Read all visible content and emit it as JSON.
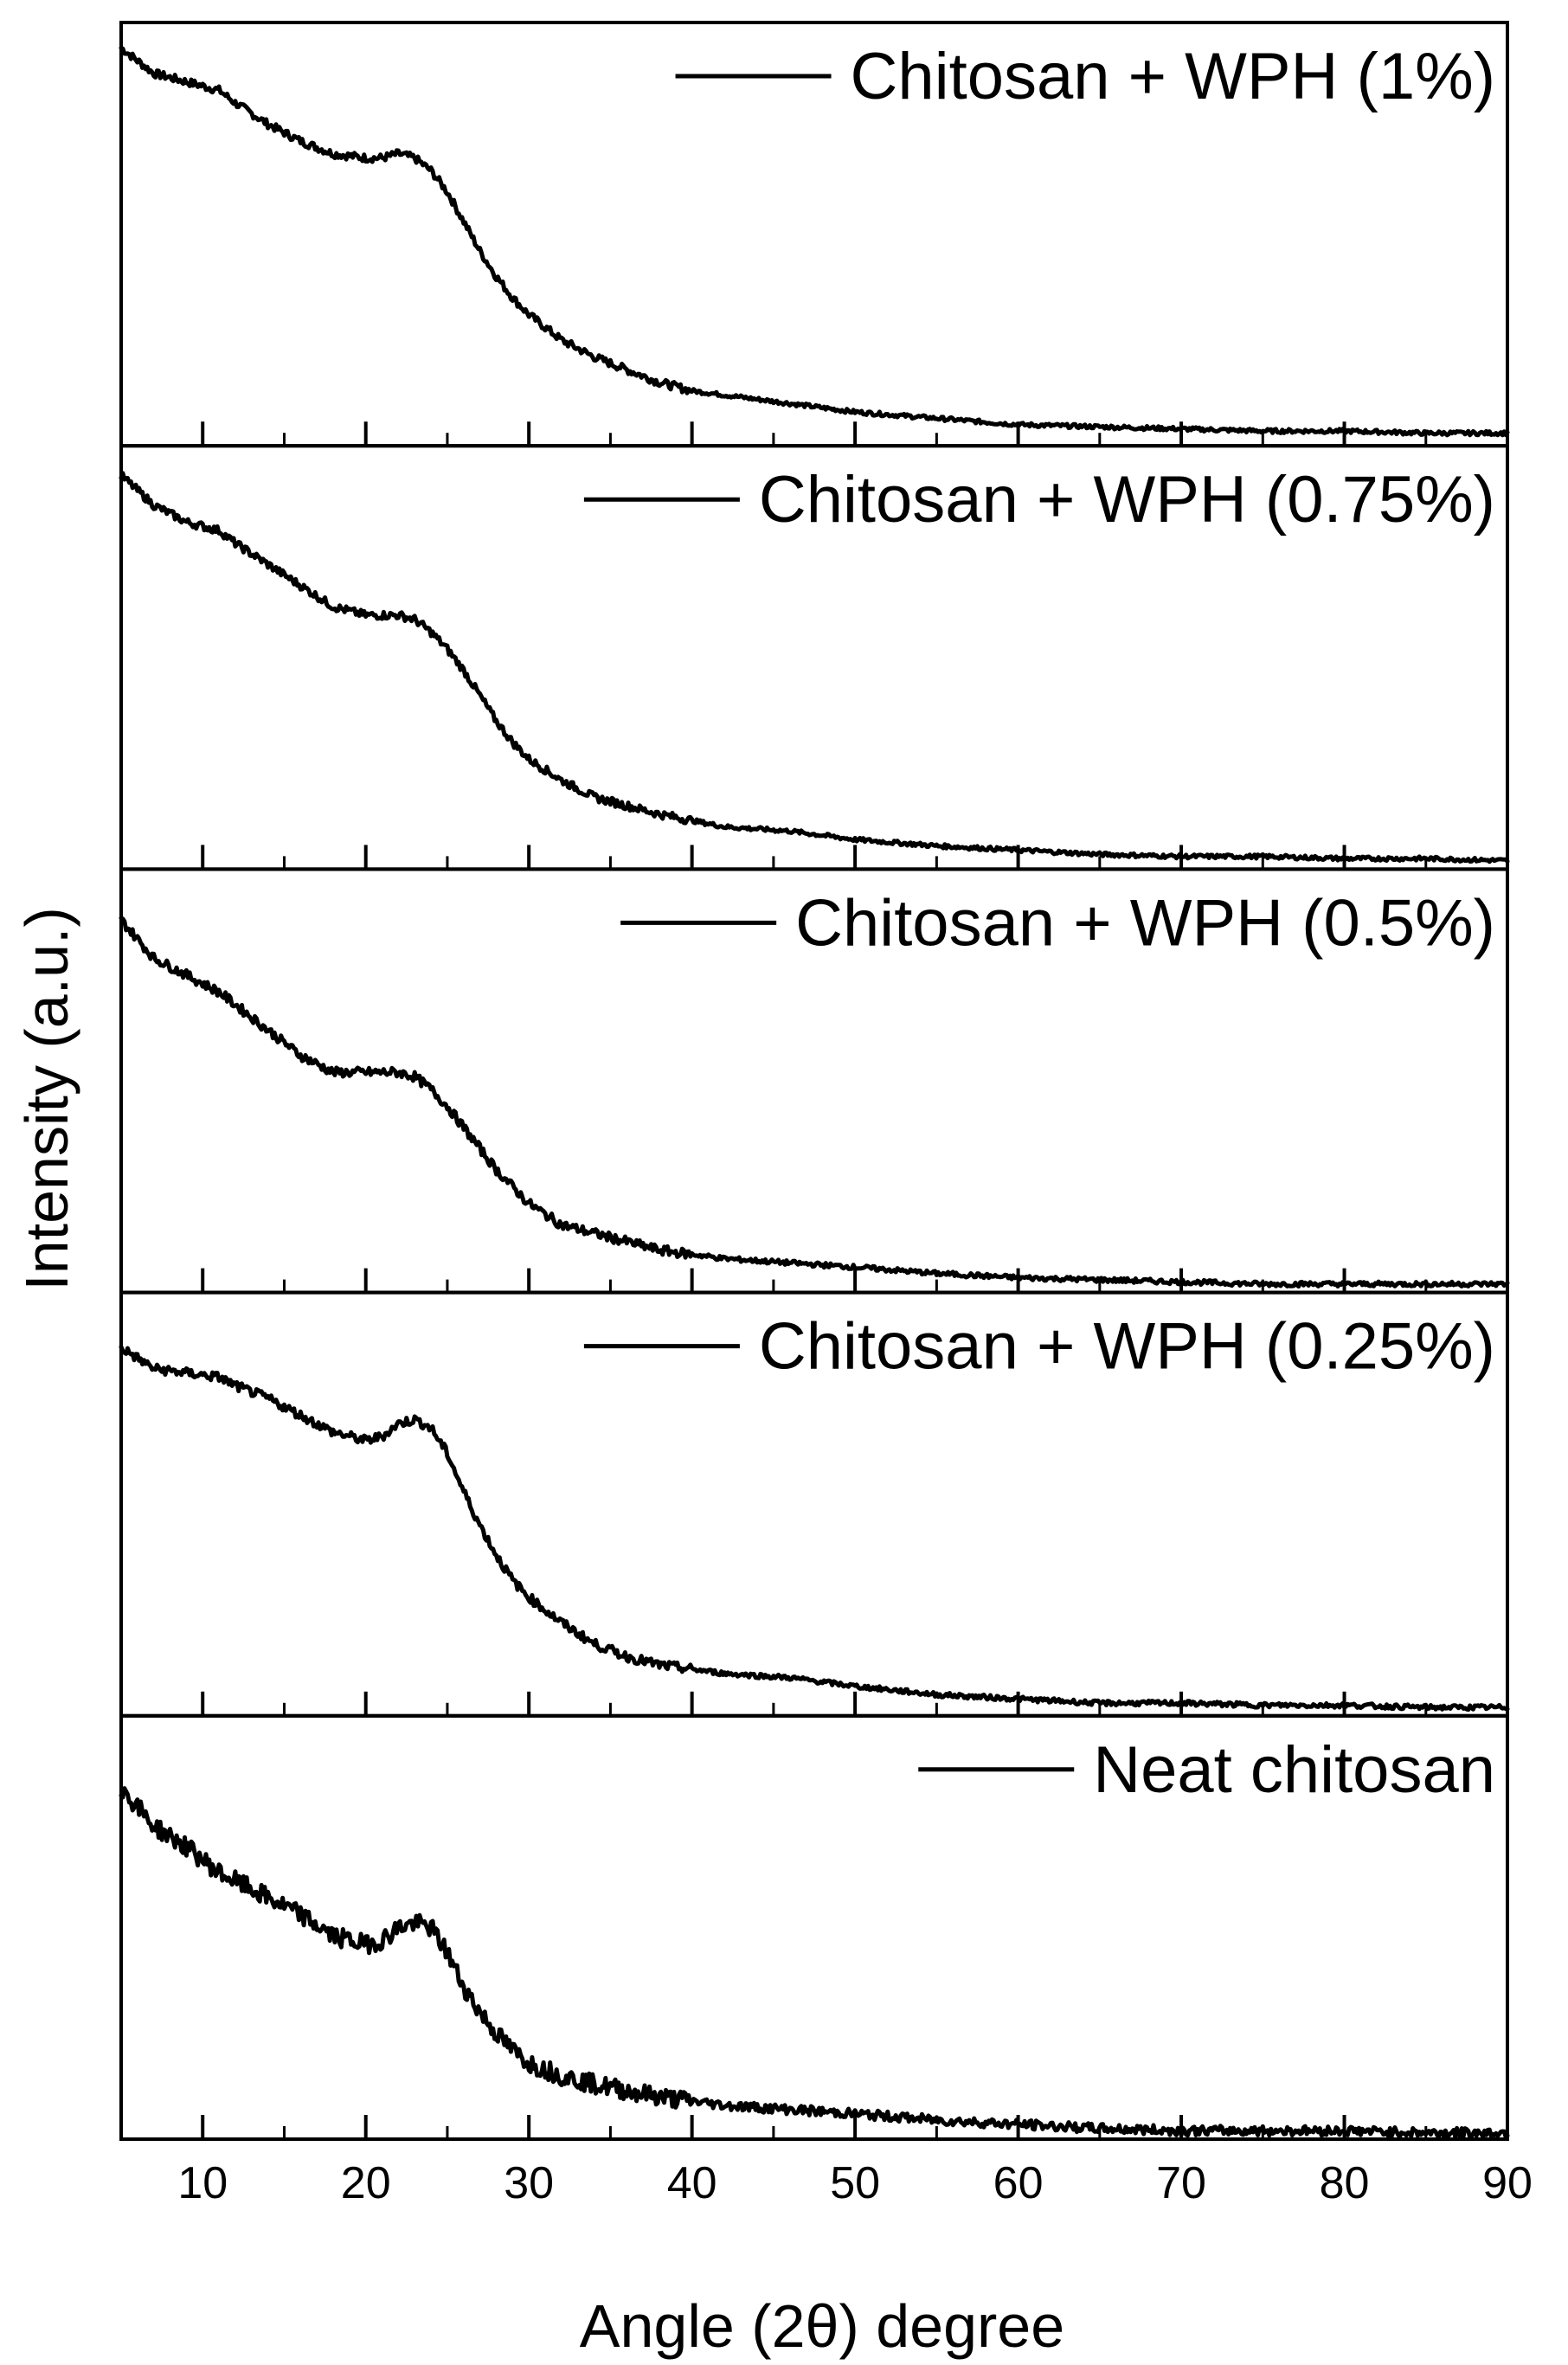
{
  "chart_data": {
    "type": "line",
    "layout": "stacked-panels",
    "xlabel": "Angle (2θ) degree",
    "ylabel": "Intensity (a.u.)",
    "xlim": [
      5,
      90
    ],
    "xticks": [
      10,
      20,
      30,
      40,
      50,
      60,
      70,
      80,
      90
    ],
    "xminor_step": 5,
    "ylim": [
      0,
      1
    ],
    "grid": false,
    "legend_position": "top-right of each panel",
    "series": [
      {
        "name": "Chitosan + WPH (1%)",
        "noise": 0.006,
        "x": [
          5,
          7,
          9,
          11,
          12,
          14,
          16,
          18,
          20,
          21,
          22,
          23,
          24,
          25,
          26,
          27,
          28,
          29,
          30,
          32,
          34,
          36,
          38,
          40,
          42,
          44,
          46,
          50,
          55,
          60,
          65,
          70,
          75,
          80,
          85,
          90
        ],
        "y": [
          0.94,
          0.88,
          0.86,
          0.84,
          0.81,
          0.76,
          0.72,
          0.69,
          0.68,
          0.68,
          0.69,
          0.68,
          0.65,
          0.6,
          0.53,
          0.46,
          0.4,
          0.35,
          0.31,
          0.25,
          0.21,
          0.18,
          0.15,
          0.13,
          0.12,
          0.11,
          0.1,
          0.08,
          0.065,
          0.05,
          0.045,
          0.04,
          0.035,
          0.035,
          0.03,
          0.03
        ]
      },
      {
        "name": "Chitosan + WPH (0.75%)",
        "noise": 0.006,
        "x": [
          5,
          7,
          9,
          11,
          12,
          14,
          16,
          18,
          20,
          21,
          22,
          23,
          24,
          25,
          26,
          27,
          28,
          29,
          30,
          32,
          34,
          36,
          38,
          40,
          42,
          44,
          46,
          50,
          55,
          60,
          65,
          70,
          75,
          80,
          85,
          90
        ],
        "y": [
          0.93,
          0.86,
          0.82,
          0.8,
          0.77,
          0.72,
          0.67,
          0.62,
          0.6,
          0.6,
          0.6,
          0.59,
          0.56,
          0.52,
          0.47,
          0.41,
          0.35,
          0.3,
          0.26,
          0.21,
          0.17,
          0.15,
          0.13,
          0.115,
          0.1,
          0.095,
          0.09,
          0.07,
          0.055,
          0.045,
          0.035,
          0.03,
          0.03,
          0.025,
          0.025,
          0.02
        ]
      },
      {
        "name": "Chitosan + WPH (0.5%)",
        "noise": 0.007,
        "x": [
          5,
          7,
          9,
          11,
          12,
          14,
          16,
          18,
          20,
          21,
          22,
          23,
          24,
          25,
          26,
          27,
          28,
          29,
          30,
          32,
          34,
          36,
          38,
          40,
          42,
          44,
          46,
          50,
          55,
          60,
          65,
          70,
          75,
          80,
          85,
          90
        ],
        "y": [
          0.88,
          0.79,
          0.75,
          0.71,
          0.68,
          0.62,
          0.56,
          0.52,
          0.52,
          0.52,
          0.52,
          0.51,
          0.48,
          0.44,
          0.39,
          0.34,
          0.29,
          0.25,
          0.21,
          0.16,
          0.14,
          0.12,
          0.1,
          0.09,
          0.08,
          0.075,
          0.07,
          0.06,
          0.045,
          0.035,
          0.03,
          0.025,
          0.02,
          0.02,
          0.02,
          0.02
        ]
      },
      {
        "name": "Chitosan + WPH (0.25%)",
        "noise": 0.007,
        "x": [
          5,
          7,
          9,
          11,
          12,
          14,
          16,
          18,
          20,
          21,
          22,
          23,
          24,
          25,
          26,
          27,
          28,
          29,
          30,
          32,
          34,
          36,
          38,
          40,
          42,
          44,
          46,
          50,
          55,
          60,
          65,
          70,
          75,
          80,
          85,
          90
        ],
        "y": [
          0.87,
          0.82,
          0.81,
          0.8,
          0.78,
          0.75,
          0.71,
          0.67,
          0.65,
          0.66,
          0.69,
          0.7,
          0.68,
          0.62,
          0.53,
          0.45,
          0.38,
          0.32,
          0.28,
          0.22,
          0.17,
          0.14,
          0.12,
          0.11,
          0.1,
          0.095,
          0.09,
          0.07,
          0.05,
          0.04,
          0.03,
          0.03,
          0.025,
          0.025,
          0.02,
          0.02
        ]
      },
      {
        "name": "Neat chitosan",
        "noise": 0.014,
        "x": [
          5,
          7,
          9,
          11,
          12,
          14,
          16,
          18,
          20,
          21,
          22,
          23,
          24,
          25,
          26,
          27,
          28,
          29,
          30,
          32,
          34,
          36,
          38,
          40,
          42,
          44,
          46,
          50,
          55,
          60,
          65,
          70,
          75,
          80,
          85,
          90
        ],
        "y": [
          0.83,
          0.74,
          0.69,
          0.63,
          0.61,
          0.57,
          0.53,
          0.48,
          0.46,
          0.47,
          0.5,
          0.51,
          0.5,
          0.44,
          0.36,
          0.3,
          0.25,
          0.21,
          0.18,
          0.15,
          0.13,
          0.115,
          0.1,
          0.09,
          0.08,
          0.075,
          0.07,
          0.06,
          0.045,
          0.035,
          0.025,
          0.02,
          0.02,
          0.02,
          0.015,
          0.015
        ]
      }
    ]
  }
}
